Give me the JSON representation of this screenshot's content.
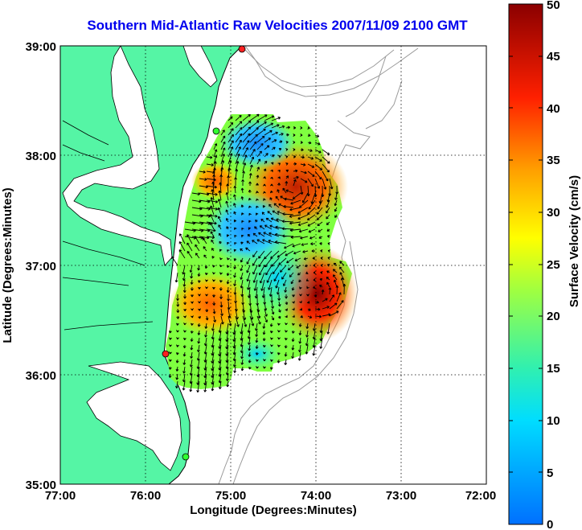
{
  "title": "Southern Mid-Atlantic Raw Velocities 2007/11/09 2100 GMT",
  "xlabel": "Longitude (Degrees:Minutes)",
  "ylabel": "Latitude (Degrees:Minutes)",
  "colorbar_label": "Surface Velocity (cm/s)",
  "x_ticks": [
    "77:00",
    "76:00",
    "75:00",
    "74:00",
    "73:00",
    "72:00"
  ],
  "y_ticks": [
    "39:00",
    "38:00",
    "37:00",
    "36:00",
    "35:00"
  ],
  "colorbar_ticks": [
    "0",
    "5",
    "10",
    "15",
    "20",
    "25",
    "30",
    "35",
    "40",
    "45",
    "50"
  ],
  "colors": {
    "land": "#55f5a5",
    "title": "#0000ee",
    "bathymetry": "#9a9a9a"
  },
  "chart_data": {
    "type": "heatmap",
    "title": "Southern Mid-Atlantic Raw Velocities 2007/11/09 2100 GMT",
    "xlabel": "Longitude (Degrees:Minutes)",
    "ylabel": "Latitude (Degrees:Minutes)",
    "xlim": [
      -77,
      -72
    ],
    "ylim": [
      35,
      39
    ],
    "colorbar": {
      "label": "Surface Velocity (cm/s)",
      "range": [
        0,
        50
      ]
    },
    "grid": true,
    "stations": [
      {
        "lon": -75.1,
        "lat": 39.0,
        "color": "red"
      },
      {
        "lon": -75.15,
        "lat": 38.22,
        "color": "green"
      },
      {
        "lon": -75.75,
        "lat": 36.18,
        "color": "red"
      },
      {
        "lon": -75.48,
        "lat": 35.25,
        "color": "green"
      }
    ],
    "velocity_regions": [
      {
        "lon": -74.3,
        "lat": 37.7,
        "speed": 40
      },
      {
        "lon": -74.0,
        "lat": 36.6,
        "speed": 45
      },
      {
        "lon": -75.0,
        "lat": 37.35,
        "speed": 8
      },
      {
        "lon": -74.6,
        "lat": 36.8,
        "speed": 10
      },
      {
        "lon": -75.0,
        "lat": 38.2,
        "speed": 5
      },
      {
        "lon": -75.25,
        "lat": 36.5,
        "speed": 35
      },
      {
        "lon": -75.1,
        "lat": 36.3,
        "speed": 20
      }
    ]
  }
}
